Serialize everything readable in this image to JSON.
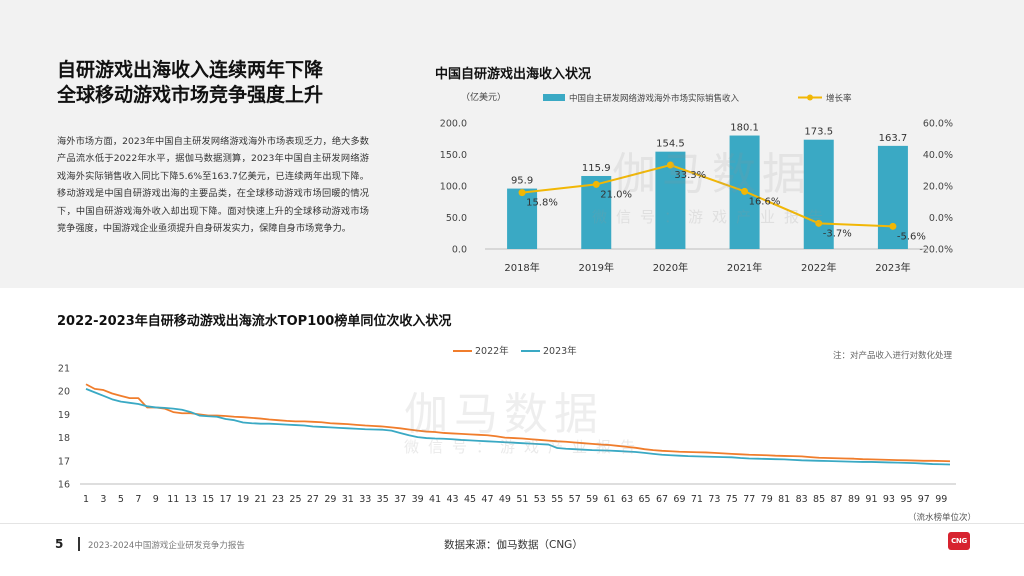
{
  "headline": [
    "自研游戏出海收入连续两年下降",
    "全球移动游戏市场竞争强度上升"
  ],
  "body_text": "海外市场方面，2023年中国自主研发网络游戏海外市场表现乏力，绝大多数产品流水低于2022年水平，据伽马数据测算，2023年中国自主研发网络游戏海外实际销售收入同比下降5.6%至163.7亿美元，已连续两年出现下降。移动游戏是中国自研游戏出海的主要品类，在全球移动游戏市场回暖的情况下，中国自研游戏海外收入却出现下降。面对快速上升的全球移动游戏市场竞争强度，中国游戏企业亟须提升自身研发实力，保障自身市场竞争力。",
  "watermark": {
    "main": "伽马数据",
    "sub": "微信号：游戏产业报告"
  },
  "footer": {
    "page": "5",
    "report": "2023-2024中国游戏企业研发竞争力报告",
    "source": "数据来源：伽马数据（CNG）",
    "logo": "CNG"
  },
  "colors": {
    "bar": "#3aa9c4",
    "growth": "#f2b705",
    "s2022": "#f07d2c",
    "s2023": "#3aa9c4"
  },
  "chart_data": [
    {
      "type": "bar",
      "title": "中国自研游戏出海收入状况",
      "unit_label": "（亿美元）",
      "categories": [
        "2018年",
        "2019年",
        "2020年",
        "2021年",
        "2022年",
        "2023年"
      ],
      "series": [
        {
          "name": "中国自主研发网络游戏海外市场实际销售收入",
          "type": "bar",
          "axis": "left",
          "values": [
            95.9,
            115.9,
            154.5,
            180.1,
            173.5,
            163.7
          ],
          "labels": [
            "95.9",
            "115.9",
            "154.5",
            "180.1",
            "173.5",
            "163.7"
          ]
        },
        {
          "name": "增长率",
          "type": "line",
          "axis": "right",
          "values": [
            15.8,
            21.0,
            33.3,
            16.6,
            -3.7,
            -5.6
          ],
          "labels": [
            "15.8%",
            "21.0%",
            "33.3%",
            "16.6%",
            "-3.7%",
            "-5.6%"
          ]
        }
      ],
      "left_axis": {
        "ylim": [
          0,
          200
        ],
        "ticks": [
          "0.0",
          "50.0",
          "100.0",
          "150.0",
          "200.0"
        ]
      },
      "right_axis": {
        "ylim": [
          -20,
          60
        ],
        "ticks": [
          "-20.0%",
          "0.0%",
          "20.0%",
          "40.0%",
          "60.0%"
        ]
      },
      "legend_position": "top"
    },
    {
      "type": "line",
      "title": "2022-2023年自研移动游戏出海流水TOP100榜单同位次收入状况",
      "note": "注：对产品收入进行对数化处理",
      "xlabel": "（流水榜单位次）",
      "x": [
        1,
        2,
        3,
        4,
        5,
        6,
        7,
        8,
        9,
        10,
        11,
        12,
        13,
        14,
        15,
        16,
        17,
        18,
        19,
        20,
        21,
        22,
        23,
        24,
        25,
        26,
        27,
        28,
        29,
        30,
        31,
        32,
        33,
        34,
        35,
        36,
        37,
        38,
        39,
        40,
        41,
        42,
        43,
        44,
        45,
        46,
        47,
        48,
        49,
        50,
        51,
        52,
        53,
        54,
        55,
        56,
        57,
        58,
        59,
        60,
        61,
        62,
        63,
        64,
        65,
        66,
        67,
        68,
        69,
        70,
        71,
        72,
        73,
        74,
        75,
        76,
        77,
        78,
        79,
        80,
        81,
        82,
        83,
        84,
        85,
        86,
        87,
        88,
        89,
        90,
        91,
        92,
        93,
        94,
        95,
        96,
        97,
        98,
        99,
        100
      ],
      "x_tick_labels": [
        "1",
        "3",
        "5",
        "7",
        "9",
        "11",
        "13",
        "15",
        "17",
        "19",
        "21",
        "23",
        "25",
        "27",
        "29",
        "31",
        "33",
        "35",
        "37",
        "39",
        "41",
        "43",
        "45",
        "47",
        "49",
        "51",
        "53",
        "55",
        "57",
        "59",
        "61",
        "63",
        "65",
        "67",
        "69",
        "71",
        "73",
        "75",
        "77",
        "79",
        "81",
        "83",
        "85",
        "87",
        "89",
        "91",
        "93",
        "95",
        "97",
        "99"
      ],
      "ylim": [
        16,
        21
      ],
      "y_ticks": [
        "16",
        "17",
        "18",
        "19",
        "20",
        "21"
      ],
      "legend_position": "top",
      "series": [
        {
          "name": "2022年",
          "values": [
            20.3,
            20.1,
            20.05,
            19.9,
            19.8,
            19.7,
            19.7,
            19.3,
            19.3,
            19.25,
            19.1,
            19.05,
            19.05,
            19.0,
            18.95,
            18.95,
            18.93,
            18.9,
            18.88,
            18.85,
            18.82,
            18.78,
            18.75,
            18.72,
            18.7,
            18.7,
            18.68,
            18.66,
            18.62,
            18.6,
            18.58,
            18.55,
            18.52,
            18.5,
            18.48,
            18.44,
            18.4,
            18.35,
            18.3,
            18.26,
            18.24,
            18.2,
            18.18,
            18.16,
            18.14,
            18.12,
            18.1,
            18.06,
            18.0,
            17.98,
            17.96,
            17.93,
            17.9,
            17.87,
            17.84,
            17.82,
            17.79,
            17.76,
            17.73,
            17.7,
            17.68,
            17.64,
            17.6,
            17.56,
            17.5,
            17.46,
            17.43,
            17.41,
            17.39,
            17.38,
            17.37,
            17.36,
            17.34,
            17.32,
            17.3,
            17.28,
            17.26,
            17.25,
            17.24,
            17.22,
            17.21,
            17.2,
            17.19,
            17.16,
            17.13,
            17.12,
            17.11,
            17.1,
            17.09,
            17.07,
            17.06,
            17.05,
            17.04,
            17.03,
            17.02,
            17.01,
            17.0,
            17.0,
            16.99,
            16.98
          ]
        },
        {
          "name": "2023年",
          "values": [
            20.1,
            19.95,
            19.8,
            19.65,
            19.55,
            19.5,
            19.45,
            19.35,
            19.3,
            19.28,
            19.25,
            19.2,
            19.1,
            18.95,
            18.92,
            18.9,
            18.8,
            18.75,
            18.65,
            18.62,
            18.6,
            18.6,
            18.58,
            18.56,
            18.54,
            18.52,
            18.48,
            18.46,
            18.44,
            18.42,
            18.4,
            18.38,
            18.36,
            18.35,
            18.34,
            18.3,
            18.2,
            18.1,
            18.02,
            17.98,
            17.96,
            17.95,
            17.93,
            17.9,
            17.88,
            17.86,
            17.84,
            17.82,
            17.8,
            17.78,
            17.76,
            17.74,
            17.72,
            17.7,
            17.55,
            17.52,
            17.5,
            17.48,
            17.46,
            17.45,
            17.44,
            17.42,
            17.4,
            17.38,
            17.34,
            17.3,
            17.26,
            17.24,
            17.22,
            17.2,
            17.19,
            17.18,
            17.17,
            17.16,
            17.15,
            17.12,
            17.1,
            17.09,
            17.08,
            17.07,
            17.06,
            17.04,
            17.02,
            17.01,
            17.0,
            16.99,
            16.98,
            16.97,
            16.96,
            16.95,
            16.95,
            16.94,
            16.93,
            16.92,
            16.91,
            16.9,
            16.88,
            16.86,
            16.85,
            16.84
          ]
        }
      ]
    }
  ]
}
